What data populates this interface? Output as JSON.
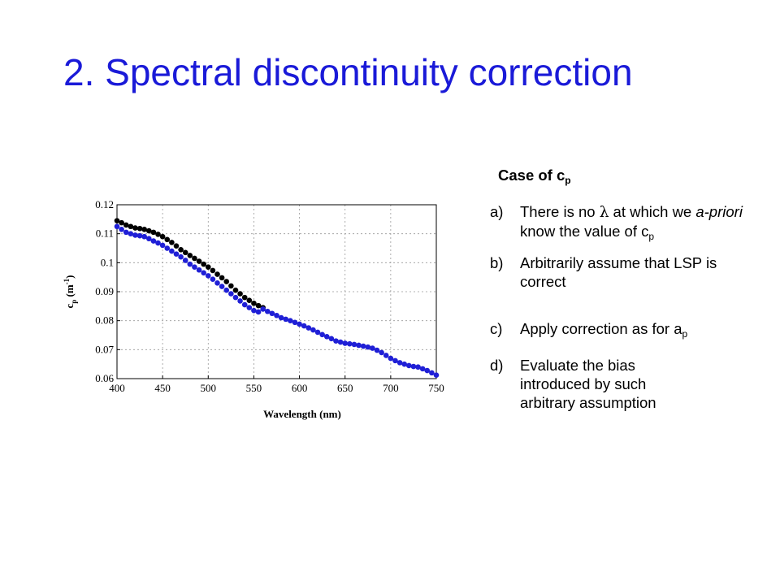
{
  "slide": {
    "title": "2. Spectral discontinuity correction",
    "heading": [
      "Case of c",
      "p"
    ],
    "items": [
      {
        "letter": "a)",
        "parts": [
          "There is no ",
          "λ",
          " at which we ",
          "a-priori",
          " know the value of c",
          "p"
        ]
      },
      {
        "letter": "b)",
        "parts": [
          "Arbitrarily assume that LSP is correct"
        ]
      },
      {
        "letter": "c)",
        "parts": [
          "Apply correction as for a",
          "p"
        ]
      },
      {
        "letter": "d)",
        "parts": [
          "Evaluate the bias introduced by such arbitrary assumption"
        ]
      }
    ]
  },
  "chart_data": {
    "type": "scatter",
    "xlabel": "Wavelength (nm)",
    "ylabel": [
      "c",
      "p",
      " (m",
      "-1",
      ")"
    ],
    "x": [
      400,
      405,
      410,
      415,
      420,
      425,
      430,
      435,
      440,
      445,
      450,
      455,
      460,
      465,
      470,
      475,
      480,
      485,
      490,
      495,
      500,
      505,
      510,
      515,
      520,
      525,
      530,
      535,
      540,
      545,
      550,
      555,
      560,
      565,
      570,
      575,
      580,
      585,
      590,
      595,
      600,
      605,
      610,
      615,
      620,
      625,
      630,
      635,
      640,
      645,
      650,
      655,
      660,
      665,
      670,
      675,
      680,
      685,
      690,
      695,
      700,
      705,
      710,
      715,
      720,
      725,
      730,
      735,
      740,
      745,
      750
    ],
    "series": [
      {
        "color": "#000000",
        "values": [
          0.1145,
          0.1138,
          0.113,
          0.1125,
          0.112,
          0.1118,
          0.1115,
          0.111,
          0.1105,
          0.1098,
          0.109,
          0.108,
          0.107,
          0.1058,
          0.1045,
          0.1035,
          0.1025,
          0.1015,
          0.1005,
          0.0995,
          0.0985,
          0.0973,
          0.096,
          0.0948,
          0.0935,
          0.092,
          0.0905,
          0.0893,
          0.088,
          0.087,
          0.086,
          0.0852,
          0.0845,
          null,
          null,
          null,
          null,
          null,
          null,
          null,
          null,
          null,
          null,
          null,
          null,
          null,
          null,
          null,
          null,
          null,
          null,
          null,
          null,
          null,
          null,
          null,
          null,
          null,
          null,
          null,
          null,
          null,
          null,
          null,
          null,
          null,
          null,
          null,
          null,
          null,
          null
        ]
      },
      {
        "color": "#1f1fd6",
        "values": [
          0.1125,
          0.1115,
          0.1105,
          0.11,
          0.1095,
          0.1093,
          0.109,
          0.1083,
          0.1075,
          0.1068,
          0.106,
          0.105,
          0.104,
          0.103,
          0.102,
          0.1008,
          0.0995,
          0.0985,
          0.0975,
          0.0965,
          0.0955,
          0.0943,
          0.093,
          0.0918,
          0.0905,
          0.0893,
          0.088,
          0.0868,
          0.0855,
          0.0845,
          0.0835,
          0.083,
          0.084,
          0.0832,
          0.0825,
          0.0818,
          0.081,
          0.0805,
          0.08,
          0.0794,
          0.0788,
          0.0782,
          0.0775,
          0.0768,
          0.076,
          0.0752,
          0.0745,
          0.0738,
          0.073,
          0.0726,
          0.0722,
          0.072,
          0.0718,
          0.0715,
          0.0712,
          0.0709,
          0.0705,
          0.0698,
          0.069,
          0.068,
          0.067,
          0.0662,
          0.0655,
          0.065,
          0.0645,
          0.0642,
          0.064,
          0.0634,
          0.0628,
          0.062,
          0.0612
        ]
      }
    ],
    "xlim": [
      400,
      750
    ],
    "xticks": [
      400,
      450,
      500,
      550,
      600,
      650,
      700,
      750
    ],
    "ylim": [
      0.06,
      0.12
    ],
    "yticks": [
      0.06,
      0.07,
      0.08,
      0.09,
      0.1,
      0.11,
      0.12
    ],
    "grid": true
  }
}
